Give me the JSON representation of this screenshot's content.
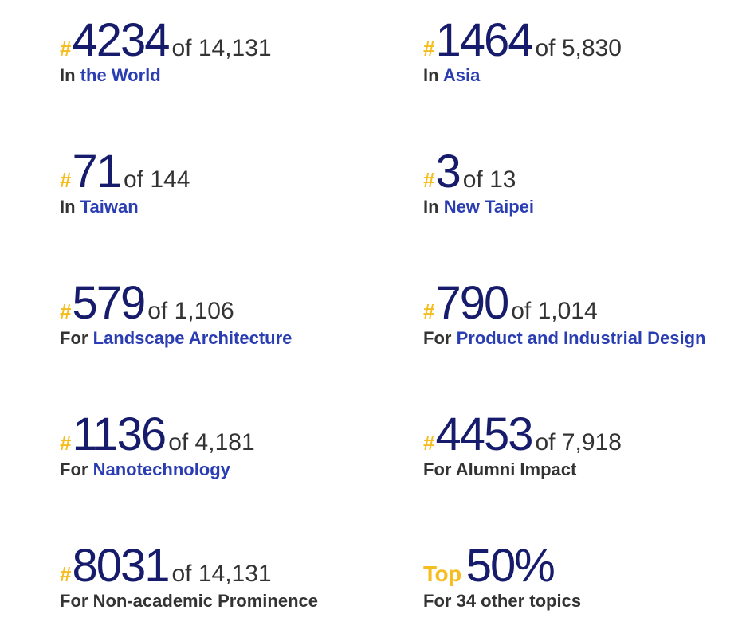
{
  "rankings": [
    {
      "prefix": "#",
      "rank": "4234",
      "of": "of 14,131",
      "lead": "In",
      "topic": "the World",
      "topic_link": true
    },
    {
      "prefix": "#",
      "rank": "1464",
      "of": "of 5,830",
      "lead": "In",
      "topic": "Asia",
      "topic_link": true
    },
    {
      "prefix": "#",
      "rank": "71",
      "of": "of 144",
      "lead": "In",
      "topic": "Taiwan",
      "topic_link": true
    },
    {
      "prefix": "#",
      "rank": "3",
      "of": "of 13",
      "lead": "In",
      "topic": "New Taipei",
      "topic_link": true
    },
    {
      "prefix": "#",
      "rank": "579",
      "of": "of 1,106",
      "lead": "For",
      "topic": "Landscape Architecture",
      "topic_link": true
    },
    {
      "prefix": "#",
      "rank": "790",
      "of": "of 1,014",
      "lead": "For",
      "topic": "Product and Industrial Design",
      "topic_link": true
    },
    {
      "prefix": "#",
      "rank": "1136",
      "of": "of 4,181",
      "lead": "For",
      "topic": "Nanotechnology",
      "topic_link": true
    },
    {
      "prefix": "#",
      "rank": "4453",
      "of": "of 7,918",
      "lead": "For",
      "topic": "Alumni Impact",
      "topic_link": false
    },
    {
      "prefix": "#",
      "rank": "8031",
      "of": "of 14,131",
      "lead": "For",
      "topic": "Non-academic Prominence",
      "topic_link": false
    },
    {
      "prefix": "Top",
      "rank": "50%",
      "of": "",
      "lead": "For",
      "topic": "34 other topics",
      "topic_link": false
    }
  ],
  "colors": {
    "rank": "#161c6b",
    "hash": "#f5bd1f",
    "link": "#2a3db2",
    "text": "#333333"
  }
}
